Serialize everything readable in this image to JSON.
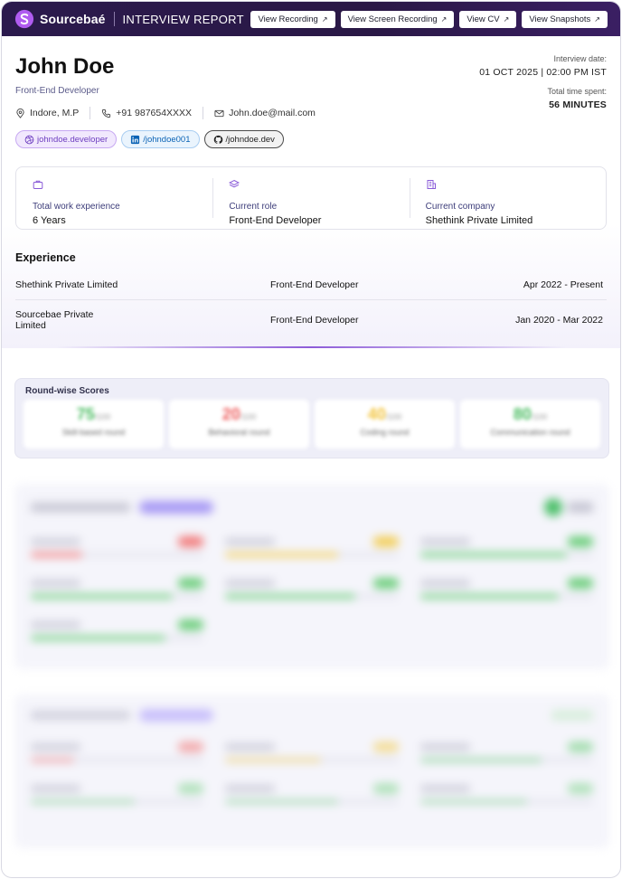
{
  "topbar": {
    "brand": "Sourcebaé",
    "title": "INTERVIEW REPORT",
    "buttons": [
      {
        "label": "View Recording"
      },
      {
        "label": "View Screen Recording"
      },
      {
        "label": "View CV"
      },
      {
        "label": "View Snapshots"
      }
    ]
  },
  "candidate": {
    "name": "John Doe",
    "role": "Front-End Developer",
    "location": "Indore, M.P",
    "phone": "+91 987654XXXX",
    "email": "John.doe@mail.com",
    "socials": {
      "dribbble": "johndoe.developer",
      "linkedin": "/johndoe001",
      "github": "/johndoe.dev"
    }
  },
  "meta": {
    "date_label": "Interview date:",
    "date_value": "01 OCT 2025 | 02:00 PM IST",
    "time_label": "Total time spent:",
    "time_value": "56 MINUTES"
  },
  "stats": [
    {
      "label": "Total work experience",
      "value": "6 Years",
      "icon": "briefcase-icon"
    },
    {
      "label": "Current role",
      "value": "Front-End Developer",
      "icon": "layers-icon"
    },
    {
      "label": "Current company",
      "value": "Shethink Private Limited",
      "icon": "building-icon"
    }
  ],
  "experience": {
    "title": "Experience",
    "rows": [
      {
        "company": "Shethink Private Limited",
        "role": "Front-End Developer",
        "dates": "Apr 2022 - Present"
      },
      {
        "company": "Sourcebae Private Limited",
        "role": "Front-End Developer",
        "dates": "Jan 2020 - Mar 2022"
      }
    ]
  },
  "scores": {
    "title": "Round-wise Scores",
    "rounds": [
      {
        "value": "75",
        "max": "/100",
        "name": "Skill-based round",
        "color": "#4cbd63"
      },
      {
        "value": "20",
        "max": "/100",
        "name": "Behavioral round",
        "color": "#ee5f5f"
      },
      {
        "value": "40",
        "max": "/100",
        "name": "Coding round",
        "color": "#f2c33b"
      },
      {
        "value": "80",
        "max": "/100",
        "name": "Communication round",
        "color": "#4cbd63"
      }
    ]
  }
}
